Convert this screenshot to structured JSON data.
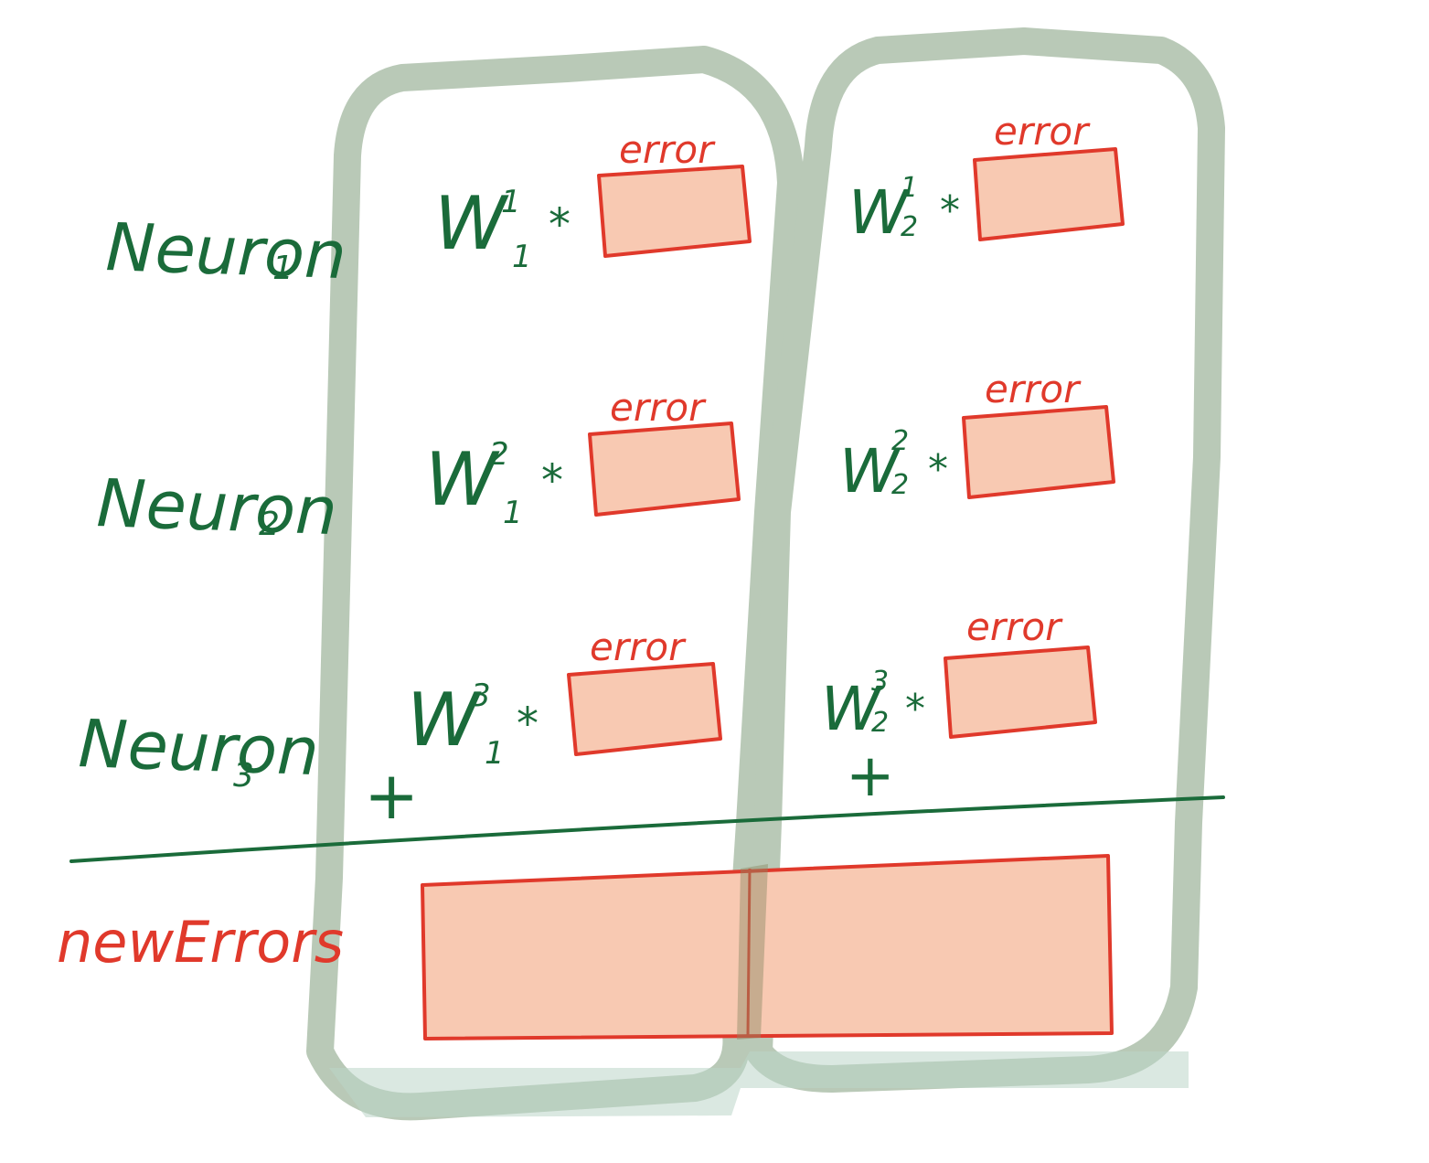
{
  "colors": {
    "ink_green": "#1a6b3a",
    "ink_red": "#e0392b",
    "box_fill": "#f8c9b2",
    "column_outline": "#b9c9b7"
  },
  "rows": [
    {
      "neuron_name": "Neuron",
      "neuron_index": "1"
    },
    {
      "neuron_name": "Neuron",
      "neuron_index": "2"
    },
    {
      "neuron_name": "Neuron",
      "neuron_index": "3"
    }
  ],
  "columns": [
    {
      "terms": [
        {
          "weight": "W",
          "superscript": "1",
          "subscript": "1",
          "op": "*",
          "box_label": "error"
        },
        {
          "weight": "W",
          "superscript": "2",
          "subscript": "1",
          "op": "*",
          "box_label": "error"
        },
        {
          "weight": "W",
          "superscript": "3",
          "subscript": "1",
          "op": "*",
          "box_label": "error"
        }
      ],
      "plus": "+"
    },
    {
      "terms": [
        {
          "weight": "W",
          "superscript": "1",
          "subscript": "2",
          "op": "*",
          "box_label": "error"
        },
        {
          "weight": "W",
          "superscript": "2",
          "subscript": "2",
          "op": "*",
          "box_label": "error"
        },
        {
          "weight": "W",
          "superscript": "3",
          "subscript": "2",
          "op": "*",
          "box_label": "error"
        }
      ],
      "plus": "+"
    }
  ],
  "result_label": "newErrors"
}
